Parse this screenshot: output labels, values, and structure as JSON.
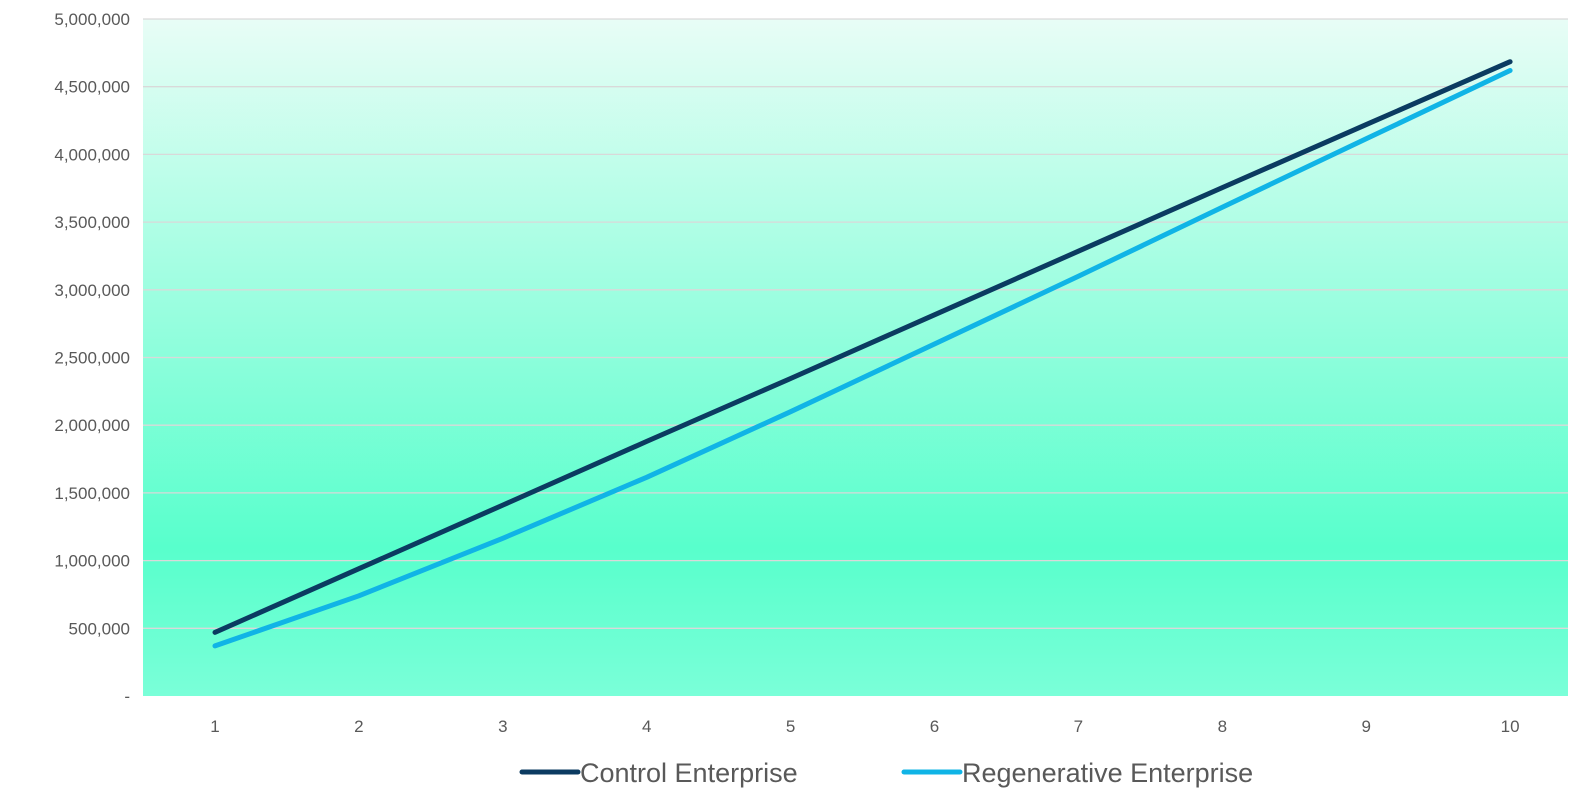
{
  "chart_data": {
    "type": "line",
    "title": "",
    "xlabel": "",
    "ylabel": "",
    "x": [
      1,
      2,
      3,
      4,
      5,
      6,
      7,
      8,
      9,
      10
    ],
    "xtick_labels": [
      "1",
      "2",
      "3",
      "4",
      "5",
      "6",
      "7",
      "8",
      "9",
      "10"
    ],
    "ylim": [
      0,
      5000000
    ],
    "ytick_values": [
      0,
      500000,
      1000000,
      1500000,
      2000000,
      2500000,
      3000000,
      3500000,
      4000000,
      4500000,
      5000000
    ],
    "ytick_labels": [
      "-",
      "500,000",
      "1,000,000",
      "1,500,000",
      "2,000,000",
      "2,500,000",
      "3,000,000",
      "3,500,000",
      "4,000,000",
      "4,500,000",
      "5,000,000"
    ],
    "grid": true,
    "legend_position": "bottom",
    "background": {
      "top_color": "#e8fdf6",
      "mid_color": "#58ffcc",
      "bottom_color": "#7affd8"
    },
    "series": [
      {
        "name": "Control Enterprise",
        "color": "#0b3b61",
        "values": [
          470000,
          940000,
          1410000,
          1880000,
          2345000,
          2815000,
          3285000,
          3755000,
          4220000,
          4685000
        ]
      },
      {
        "name": "Regenerative Enterprise",
        "color": "#10b4e6",
        "values": [
          370000,
          740000,
          1165000,
          1615000,
          2100000,
          2600000,
          3100000,
          3610000,
          4115000,
          4620000
        ]
      }
    ]
  }
}
